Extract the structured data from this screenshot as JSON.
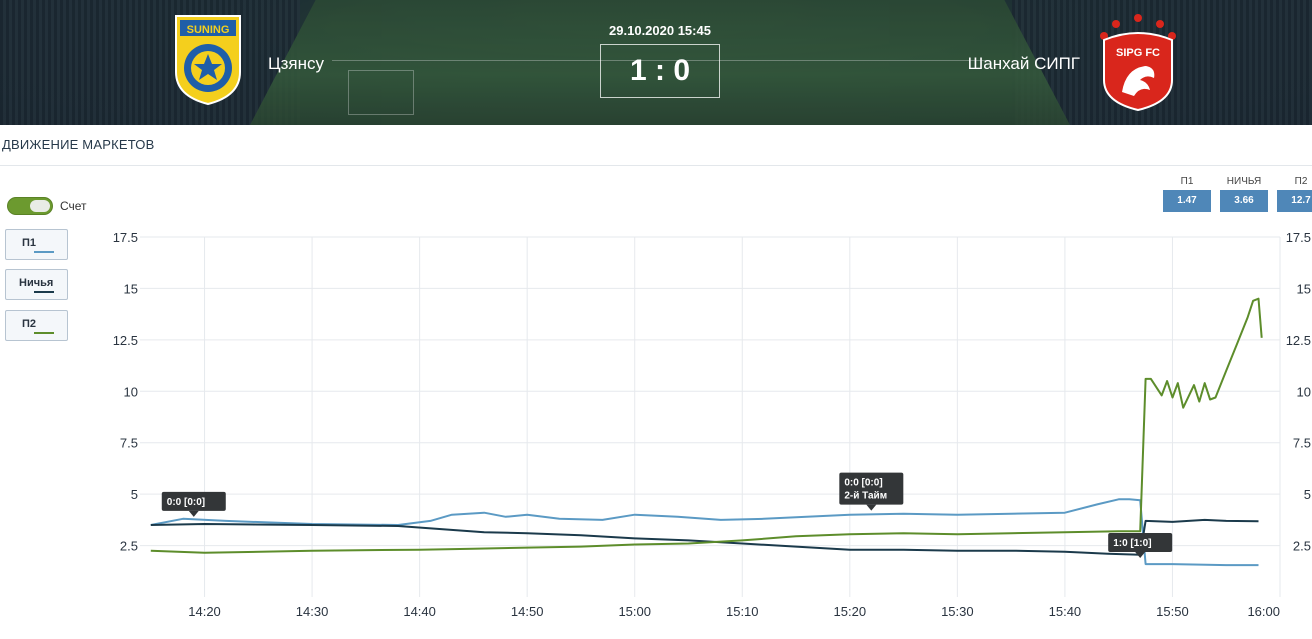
{
  "header": {
    "date_time": "29.10.2020 15:45",
    "score": "1 : 0",
    "team_home": "Цзянсу",
    "team_away": "Шанхай СИПГ",
    "home_crest_text": "SUNING",
    "away_crest_text": "SIPG FC"
  },
  "section": {
    "title": "ДВИЖЕНИЕ МАРКЕТОВ"
  },
  "toggle": {
    "label": "Счет",
    "on": true
  },
  "legend": [
    {
      "label": "П1",
      "color": "#5b9ac4"
    },
    {
      "label": "Ничья",
      "color": "#1b3a4b"
    },
    {
      "label": "П2",
      "color": "#5d8d2b"
    }
  ],
  "odds": [
    {
      "label": "П1",
      "value": "1.47"
    },
    {
      "label": "НИЧЬЯ",
      "value": "3.66"
    },
    {
      "label": "П2",
      "value": "12.7"
    }
  ],
  "chart_data": {
    "type": "line",
    "x_ticks": [
      "14:20",
      "14:30",
      "14:40",
      "14:50",
      "15:00",
      "15:10",
      "15:20",
      "15:30",
      "15:40",
      "15:50",
      "16:00"
    ],
    "y_ticks": [
      "2.5",
      "5",
      "7.5",
      "10",
      "12.5",
      "15",
      "17.5"
    ],
    "xlim": [
      "14:14",
      "16:00"
    ],
    "ylim": [
      0,
      17.5
    ],
    "grid": true,
    "series": [
      {
        "name": "П1",
        "color": "#5b9ac4",
        "points": [
          [
            "14:15",
            3.5
          ],
          [
            "14:18",
            3.8
          ],
          [
            "14:22",
            3.7
          ],
          [
            "14:30",
            3.55
          ],
          [
            "14:38",
            3.5
          ],
          [
            "14:41",
            3.7
          ],
          [
            "14:43",
            4.0
          ],
          [
            "14:46",
            4.1
          ],
          [
            "14:48",
            3.9
          ],
          [
            "14:50",
            4.0
          ],
          [
            "14:53",
            3.8
          ],
          [
            "14:57",
            3.75
          ],
          [
            "15:00",
            4.0
          ],
          [
            "15:04",
            3.9
          ],
          [
            "15:08",
            3.75
          ],
          [
            "15:12",
            3.8
          ],
          [
            "15:16",
            3.9
          ],
          [
            "15:20",
            4.0
          ],
          [
            "15:25",
            4.05
          ],
          [
            "15:30",
            4.0
          ],
          [
            "15:35",
            4.05
          ],
          [
            "15:40",
            4.1
          ],
          [
            "15:43",
            4.5
          ],
          [
            "15:45",
            4.75
          ],
          [
            "15:46",
            4.75
          ],
          [
            "15:47",
            4.7
          ],
          [
            "15:47.5",
            1.6
          ],
          [
            "15:50",
            1.6
          ],
          [
            "15:55",
            1.55
          ],
          [
            "15:58",
            1.55
          ]
        ]
      },
      {
        "name": "Ничья",
        "color": "#1b3a4b",
        "points": [
          [
            "14:15",
            3.5
          ],
          [
            "14:20",
            3.55
          ],
          [
            "14:30",
            3.5
          ],
          [
            "14:38",
            3.45
          ],
          [
            "14:42",
            3.3
          ],
          [
            "14:46",
            3.15
          ],
          [
            "14:50",
            3.1
          ],
          [
            "14:55",
            3.0
          ],
          [
            "15:00",
            2.85
          ],
          [
            "15:05",
            2.75
          ],
          [
            "15:10",
            2.6
          ],
          [
            "15:15",
            2.45
          ],
          [
            "15:20",
            2.3
          ],
          [
            "15:25",
            2.3
          ],
          [
            "15:30",
            2.25
          ],
          [
            "15:35",
            2.25
          ],
          [
            "15:40",
            2.2
          ],
          [
            "15:44",
            2.1
          ],
          [
            "15:47",
            2.05
          ],
          [
            "15:47.5",
            3.7
          ],
          [
            "15:50",
            3.65
          ],
          [
            "15:53",
            3.75
          ],
          [
            "15:55",
            3.7
          ],
          [
            "15:58",
            3.68
          ]
        ]
      },
      {
        "name": "П2",
        "color": "#5d8d2b",
        "points": [
          [
            "14:15",
            2.25
          ],
          [
            "14:20",
            2.15
          ],
          [
            "14:30",
            2.25
          ],
          [
            "14:40",
            2.3
          ],
          [
            "14:45",
            2.35
          ],
          [
            "14:50",
            2.4
          ],
          [
            "14:55",
            2.45
          ],
          [
            "15:00",
            2.55
          ],
          [
            "15:05",
            2.6
          ],
          [
            "15:10",
            2.75
          ],
          [
            "15:15",
            2.95
          ],
          [
            "15:20",
            3.05
          ],
          [
            "15:25",
            3.1
          ],
          [
            "15:30",
            3.05
          ],
          [
            "15:35",
            3.1
          ],
          [
            "15:40",
            3.15
          ],
          [
            "15:45",
            3.2
          ],
          [
            "15:47",
            3.2
          ],
          [
            "15:47.5",
            10.6
          ],
          [
            "15:48",
            10.6
          ],
          [
            "15:49",
            9.8
          ],
          [
            "15:49.5",
            10.5
          ],
          [
            "15:50",
            9.7
          ],
          [
            "15:50.5",
            10.4
          ],
          [
            "15:51",
            9.2
          ],
          [
            "15:52",
            10.3
          ],
          [
            "15:52.5",
            9.5
          ],
          [
            "15:53",
            10.4
          ],
          [
            "15:53.5",
            9.6
          ],
          [
            "15:54",
            9.7
          ],
          [
            "15:55",
            11.0
          ],
          [
            "15:56",
            12.3
          ],
          [
            "15:57",
            13.6
          ],
          [
            "15:57.5",
            14.4
          ],
          [
            "15:58",
            14.5
          ],
          [
            "15:58.3",
            12.6
          ]
        ]
      }
    ],
    "annotations": [
      {
        "x": "14:19",
        "y": 3.8,
        "lines": [
          "0:0 [0:0]"
        ]
      },
      {
        "x": "15:22",
        "y": 4.1,
        "lines": [
          "0:0 [0:0]",
          "2-й Тайм"
        ]
      },
      {
        "x": "15:47",
        "y": 1.8,
        "lines": [
          "1:0 [1:0]"
        ]
      }
    ]
  }
}
